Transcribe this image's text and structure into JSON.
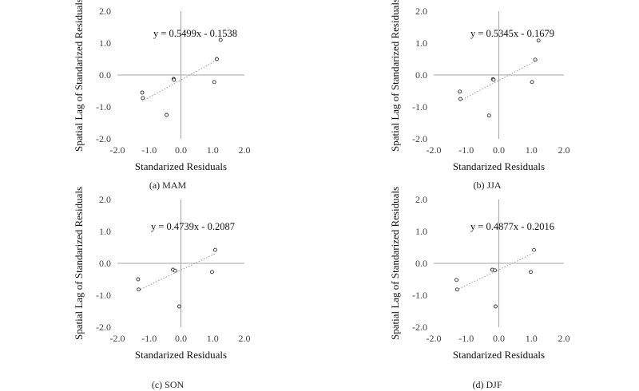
{
  "chart_data": [
    {
      "type": "scatter",
      "caption": "(a) MAM",
      "xlabel": "Standarized Residuals",
      "ylabel": "Spatial Lag of Standarized Residuals",
      "xlim": [
        -2.0,
        2.0
      ],
      "ylim": [
        -2.0,
        2.0
      ],
      "xticks": [
        "-2.0",
        "-1.0",
        "0.0",
        "1.0",
        "2.0"
      ],
      "yticks": [
        "-2.0",
        "-1.0",
        "0.0",
        "1.0",
        "2.0"
      ],
      "trendline": {
        "slope": 0.5499,
        "intercept": -0.1538,
        "style": "dotted"
      },
      "equation": "y = 0.5499x - 0.1538",
      "grid": false,
      "points": [
        {
          "x": -1.22,
          "y": -0.55
        },
        {
          "x": -1.2,
          "y": -0.72
        },
        {
          "x": -0.45,
          "y": -1.25
        },
        {
          "x": -0.23,
          "y": -0.12
        },
        {
          "x": -0.22,
          "y": -0.15
        },
        {
          "x": 1.05,
          "y": -0.22
        },
        {
          "x": 1.13,
          "y": 0.5
        },
        {
          "x": 1.25,
          "y": 1.1
        }
      ]
    },
    {
      "type": "scatter",
      "caption": "(b) JJA",
      "xlabel": "Standarized Residuals",
      "ylabel": "Spatial Lag of Standarized Residuals",
      "xlim": [
        -2.0,
        2.0
      ],
      "ylim": [
        -2.0,
        2.0
      ],
      "xticks": [
        "-2.0",
        "-1.0",
        "0.0",
        "1.0",
        "2.0"
      ],
      "yticks": [
        "-2.0",
        "-1.0",
        "0.0",
        "1.0",
        "2.0"
      ],
      "trendline": {
        "slope": 0.5345,
        "intercept": -0.1679,
        "style": "dotted"
      },
      "equation": "y = 0.5345x - 0.1679",
      "grid": false,
      "points": [
        {
          "x": -1.2,
          "y": -0.52
        },
        {
          "x": -1.18,
          "y": -0.75
        },
        {
          "x": -0.3,
          "y": -1.27
        },
        {
          "x": -0.18,
          "y": -0.13
        },
        {
          "x": -0.16,
          "y": -0.15
        },
        {
          "x": 1.02,
          "y": -0.22
        },
        {
          "x": 1.12,
          "y": 0.48
        },
        {
          "x": 1.22,
          "y": 1.08
        }
      ]
    },
    {
      "type": "scatter",
      "caption": "(c) SON",
      "xlabel": "Standarized Residuals",
      "ylabel": "Spatial Lag of Standarized Residuals",
      "xlim": [
        -2.0,
        2.0
      ],
      "ylim": [
        -2.0,
        2.0
      ],
      "xticks": [
        "-2.0",
        "-1.0",
        "0.0",
        "1.0",
        "2.0"
      ],
      "yticks": [
        "-2.0",
        "-1.0",
        "0.0",
        "1.0",
        "2.0"
      ],
      "trendline": {
        "slope": 0.4739,
        "intercept": -0.2087,
        "style": "dotted"
      },
      "equation": "y = 0.4739x - 0.2087",
      "grid": false,
      "points": [
        {
          "x": -1.35,
          "y": -0.5
        },
        {
          "x": -1.33,
          "y": -0.82
        },
        {
          "x": -0.25,
          "y": -0.2
        },
        {
          "x": -0.18,
          "y": -0.23
        },
        {
          "x": -0.05,
          "y": -1.35
        },
        {
          "x": 0.98,
          "y": -0.27
        },
        {
          "x": 1.08,
          "y": 0.42
        }
      ]
    },
    {
      "type": "scatter",
      "caption": "(d) DJF",
      "xlabel": "Standarized Residuals",
      "ylabel": "Spatial Lag of Standarized Residuals",
      "xlim": [
        -2.0,
        2.0
      ],
      "ylim": [
        -2.0,
        2.0
      ],
      "xticks": [
        "-2.0",
        "-1.0",
        "0.0",
        "1.0",
        "2.0"
      ],
      "yticks": [
        "-2.0",
        "-1.0",
        "0.0",
        "1.0",
        "2.0"
      ],
      "trendline": {
        "slope": 0.4877,
        "intercept": -0.2016,
        "style": "dotted"
      },
      "equation": "y = 0.4877x - 0.2016",
      "grid": false,
      "points": [
        {
          "x": -1.3,
          "y": -0.52
        },
        {
          "x": -1.28,
          "y": -0.82
        },
        {
          "x": -0.2,
          "y": -0.2
        },
        {
          "x": -0.12,
          "y": -0.22
        },
        {
          "x": -0.1,
          "y": -1.35
        },
        {
          "x": 0.98,
          "y": -0.27
        },
        {
          "x": 1.08,
          "y": 0.42
        }
      ]
    }
  ]
}
